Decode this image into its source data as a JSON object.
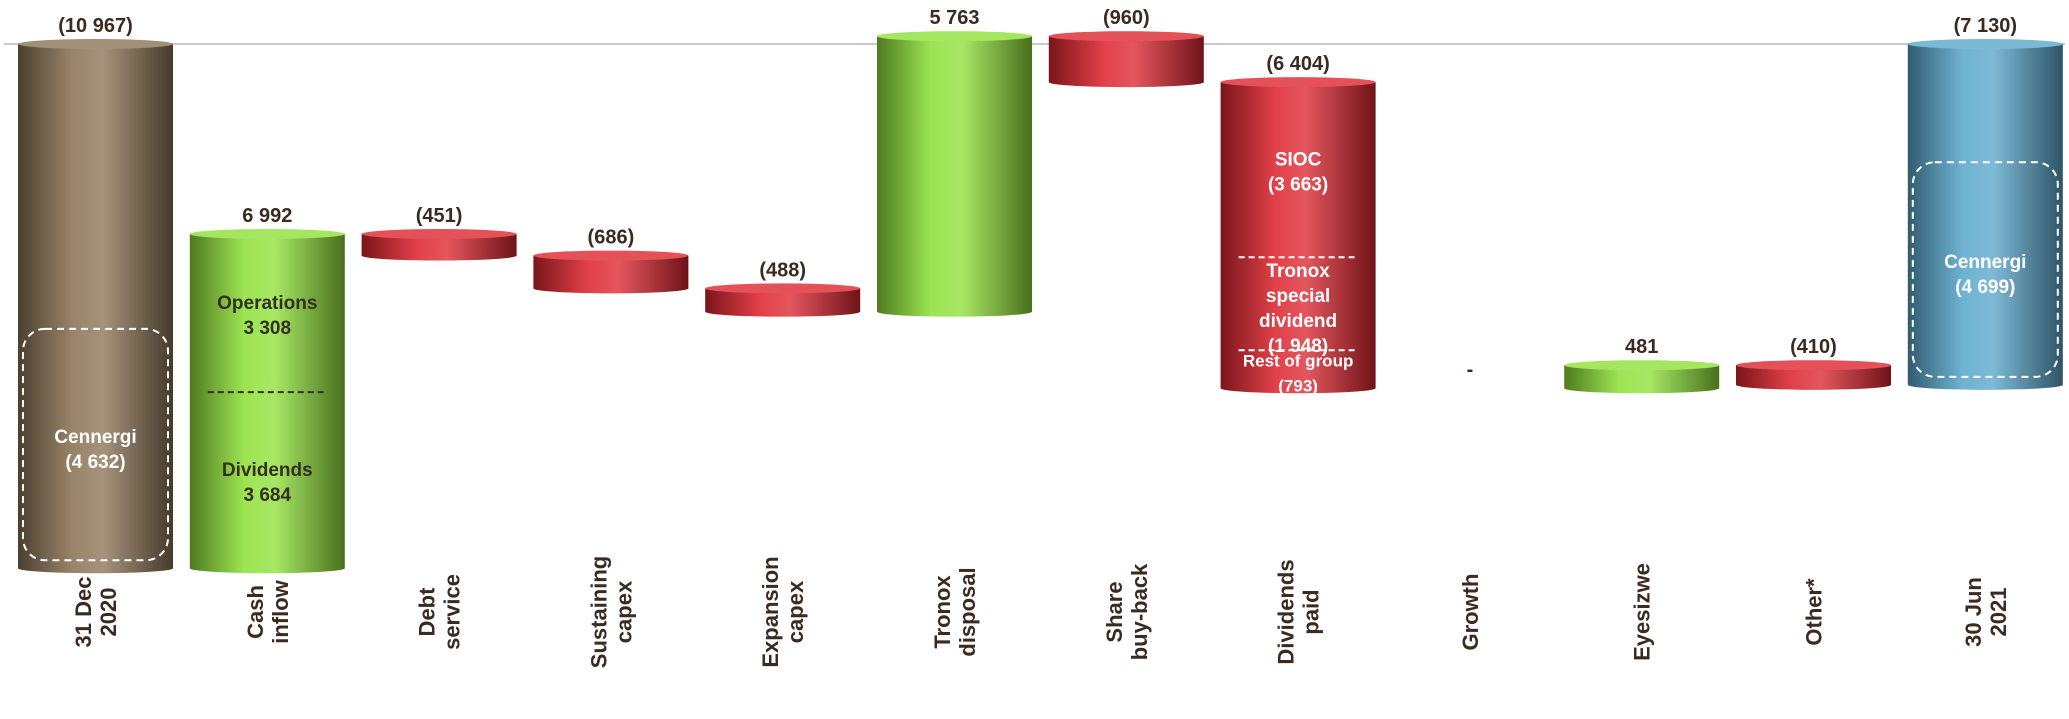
{
  "chart_data": {
    "type": "bar",
    "subtype": "waterfall",
    "categories": [
      [
        "31 Dec",
        "2020"
      ],
      [
        "Cash",
        "inflow"
      ],
      [
        "Debt",
        "service"
      ],
      [
        "Sustaining",
        "capex"
      ],
      [
        "Expansion",
        "capex"
      ],
      [
        "Tronox",
        "disposal"
      ],
      [
        "Share",
        "buy-back"
      ],
      [
        "Dividends",
        "paid"
      ],
      [
        "Growth"
      ],
      [
        "Eyesizwe"
      ],
      [
        "Other*"
      ],
      [
        "30 Jun",
        "2021"
      ]
    ],
    "values": [
      -10967,
      6992,
      -451,
      -686,
      -488,
      5763,
      -960,
      -6404,
      0,
      481,
      -410,
      -7130
    ],
    "value_labels": [
      "(10 967)",
      "6 992",
      "(451)",
      "(686)",
      "(488)",
      "5 763",
      "(960)",
      "(6 404)",
      "-",
      "481",
      "(410)",
      "(7 130)"
    ],
    "kinds": [
      "total",
      "increase",
      "decrease",
      "decrease",
      "decrease",
      "increase",
      "decrease",
      "decrease",
      "increase",
      "increase",
      "decrease",
      "total"
    ],
    "reference_line": 0,
    "segments": [
      {
        "bar": 0,
        "label": "Cennergi",
        "value_label": "(4 632)",
        "value": -4632,
        "boxed": true
      },
      {
        "bar": 1,
        "label": "Operations",
        "value_label": "3 308",
        "value": 3308
      },
      {
        "bar": 1,
        "label": "Dividends",
        "value_label": "3 684",
        "value": 3684
      },
      {
        "bar": 7,
        "label": "SIOC",
        "value_label": "(3 663)",
        "value": -3663
      },
      {
        "bar": 7,
        "label": "Tronox special dividend",
        "label_lines": [
          "Tronox",
          "special",
          "dividend"
        ],
        "value_label": "(1 948)",
        "value": -1948
      },
      {
        "bar": 7,
        "label": "Rest of group",
        "value_label": "(793)",
        "value": -793
      },
      {
        "bar": 11,
        "label": "Cennergi",
        "value_label": "(4 699)",
        "value": -4699,
        "boxed": true
      }
    ],
    "colors": {
      "total_start": "#8b7355",
      "total_end": "#5aa7cb",
      "increase": "#8fe03a",
      "decrease": "#dd2630",
      "label_text": "#3a2a20",
      "inner_text_light": "#ffffff",
      "inner_text_dark": "#33301f",
      "reference_line": "#b8b8b8"
    }
  }
}
